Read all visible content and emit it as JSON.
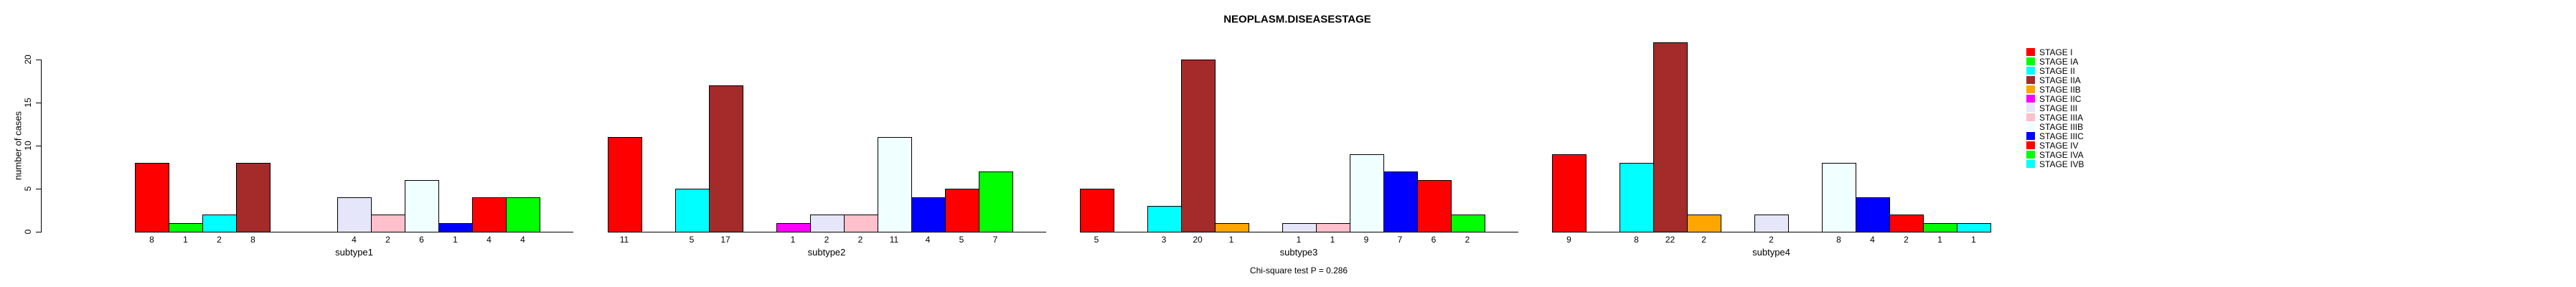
{
  "title": "NEOPLASM.DISEASESTAGE",
  "chart_data": {
    "type": "bar",
    "title": "NEOPLASM.DISEASESTAGE",
    "xlabel": "",
    "ylabel": "number of cases",
    "ylim": [
      0,
      20
    ],
    "yticks": [
      0,
      5,
      10,
      15,
      20
    ],
    "grid": false,
    "bar_value_labels_shown": true,
    "legend_position": "right",
    "categories": [
      "subtype1",
      "subtype2",
      "subtype3",
      "subtype4"
    ],
    "series": [
      {
        "name": "STAGE I",
        "color": "#FF0000",
        "values": [
          8,
          11,
          5,
          9
        ]
      },
      {
        "name": "STAGE IA",
        "color": "#00FF00",
        "values": [
          1,
          0,
          0,
          0
        ]
      },
      {
        "name": "STAGE II",
        "color": "#00FFFF",
        "values": [
          2,
          5,
          3,
          8
        ]
      },
      {
        "name": "STAGE IIA",
        "color": "#A52A2A",
        "values": [
          8,
          17,
          20,
          22
        ]
      },
      {
        "name": "STAGE IIB",
        "color": "#FFA500",
        "values": [
          0,
          0,
          1,
          2
        ]
      },
      {
        "name": "STAGE IIC",
        "color": "#FF00FF",
        "values": [
          0,
          1,
          0,
          0
        ]
      },
      {
        "name": "STAGE III",
        "color": "#E6E6FA",
        "values": [
          4,
          2,
          1,
          2
        ]
      },
      {
        "name": "STAGE IIIA",
        "color": "#FFC0CB",
        "values": [
          2,
          2,
          1,
          0
        ]
      },
      {
        "name": "STAGE IIIB",
        "color": "#F0FFFF",
        "values": [
          6,
          11,
          9,
          8
        ]
      },
      {
        "name": "STAGE IIIC",
        "color": "#0000FF",
        "values": [
          1,
          4,
          7,
          4
        ]
      },
      {
        "name": "STAGE IV",
        "color": "#FF0000",
        "values": [
          4,
          5,
          6,
          2
        ]
      },
      {
        "name": "STAGE IVA",
        "color": "#00FF00",
        "values": [
          4,
          7,
          2,
          1
        ]
      },
      {
        "name": "STAGE IVB",
        "color": "#00FFFF",
        "values": [
          0,
          0,
          0,
          1
        ]
      }
    ],
    "annotation": "Chi-square test P = 0.286"
  }
}
